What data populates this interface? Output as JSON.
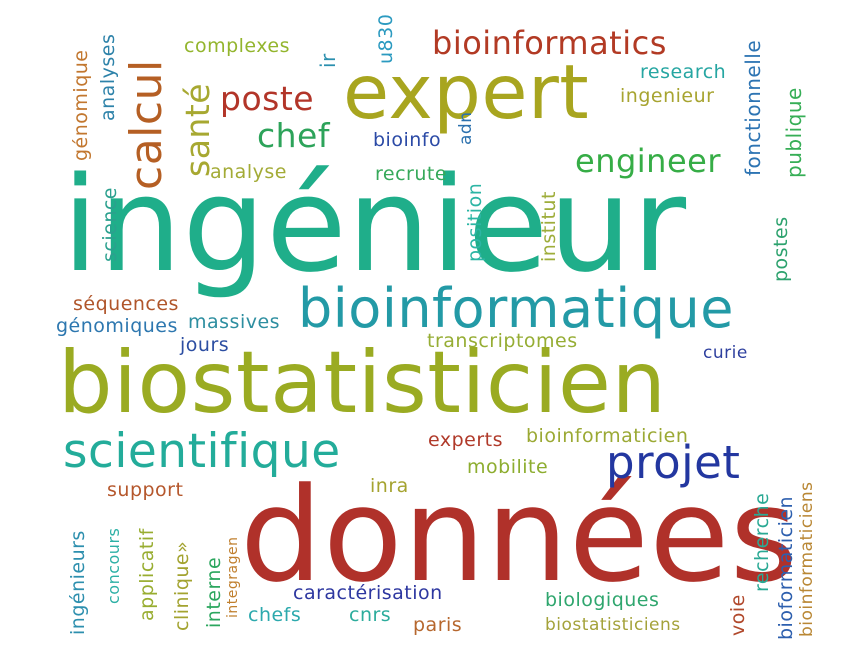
{
  "words": {
    "w0": {
      "text": "ingénieur",
      "color": "#1fae8a"
    },
    "w1": {
      "text": "données",
      "color": "#b0312a"
    },
    "w2": {
      "text": "biostatisticien",
      "color": "#9aab22"
    },
    "w3": {
      "text": "bioinformatique",
      "color": "#239aa6"
    },
    "w4": {
      "text": "expert",
      "color": "#a8a51f"
    },
    "w5": {
      "text": "scientifique",
      "color": "#23ac9a"
    },
    "w6": {
      "text": "projet",
      "color": "#2337a0"
    },
    "w7": {
      "text": "bioinformatics",
      "color": "#b23a24"
    },
    "w8": {
      "text": "calcul",
      "color": "#b55f24"
    },
    "w9": {
      "text": "engineer",
      "color": "#36ad46"
    },
    "w10": {
      "text": "poste",
      "color": "#b23529"
    },
    "w11": {
      "text": "santé",
      "color": "#a7a831"
    },
    "w12": {
      "text": "chef",
      "color": "#2da35a"
    },
    "w13": {
      "text": "complexes",
      "color": "#93b52d"
    },
    "w14": {
      "text": "ir",
      "color": "#2a8fae"
    },
    "w15": {
      "text": "u830",
      "color": "#2b9ac0"
    },
    "w16": {
      "text": "research",
      "color": "#26a6a2"
    },
    "w17": {
      "text": "ingenieur",
      "color": "#a7a431"
    },
    "w18": {
      "text": "fonctionnelle",
      "color": "#2d74b3"
    },
    "w19": {
      "text": "publique",
      "color": "#36ae56"
    },
    "w20": {
      "text": "génomique",
      "color": "#c2772f"
    },
    "w21": {
      "text": "analyses",
      "color": "#2d82a9"
    },
    "w22": {
      "text": "bioinfo",
      "color": "#2b4aa6"
    },
    "w23": {
      "text": "adn",
      "color": "#2c71ae"
    },
    "w24": {
      "text": "analyse",
      "color": "#a3ab36"
    },
    "w25": {
      "text": "recrute",
      "color": "#36a95a"
    },
    "w26": {
      "text": "science",
      "color": "#2ba08e"
    },
    "w27": {
      "text": "position",
      "color": "#2cb5a4"
    },
    "w28": {
      "text": "institut",
      "color": "#9ead3a"
    },
    "w29": {
      "text": "postes",
      "color": "#2da26e"
    },
    "w30": {
      "text": "séquences",
      "color": "#b0552a"
    },
    "w31": {
      "text": "génomiques",
      "color": "#2d77af"
    },
    "w32": {
      "text": "massives",
      "color": "#2d8ea0"
    },
    "w33": {
      "text": "jours",
      "color": "#2c4ea2"
    },
    "w34": {
      "text": "transcriptomes",
      "color": "#96ad34"
    },
    "w35": {
      "text": "curie",
      "color": "#2d3f9e"
    },
    "w36": {
      "text": "experts",
      "color": "#b03a2a"
    },
    "w37": {
      "text": "bioinformaticien",
      "color": "#9ba934"
    },
    "w38": {
      "text": "mobilite",
      "color": "#8dad2f"
    },
    "w39": {
      "text": "inra",
      "color": "#a5a32f"
    },
    "w40": {
      "text": "support",
      "color": "#b5572c"
    },
    "w41": {
      "text": "ingénieurs",
      "color": "#2d8fae"
    },
    "w42": {
      "text": "concours",
      "color": "#2cb0a5"
    },
    "w43": {
      "text": "applicatif",
      "color": "#98ad30"
    },
    "w44": {
      "text": "clinique»",
      "color": "#a3a330"
    },
    "w45": {
      "text": "interne",
      "color": "#2ba65e"
    },
    "w46": {
      "text": "integragen",
      "color": "#c07f2e"
    },
    "w47": {
      "text": "caractérisation",
      "color": "#2d37a0"
    },
    "w48": {
      "text": "chefs",
      "color": "#2ca9ad"
    },
    "w49": {
      "text": "cnrs",
      "color": "#2cac9c"
    },
    "w50": {
      "text": "paris",
      "color": "#b6672e"
    },
    "w51": {
      "text": "biologiques",
      "color": "#2fa66e"
    },
    "w52": {
      "text": "biostatisticiens",
      "color": "#a4a23a"
    },
    "w53": {
      "text": "voie",
      "color": "#b1492c"
    },
    "w54": {
      "text": "recherche",
      "color": "#2aa994"
    },
    "w55": {
      "text": "bioformaticien",
      "color": "#2d5fae"
    },
    "w56": {
      "text": "bioinformaticiens",
      "color": "#b98734"
    }
  }
}
